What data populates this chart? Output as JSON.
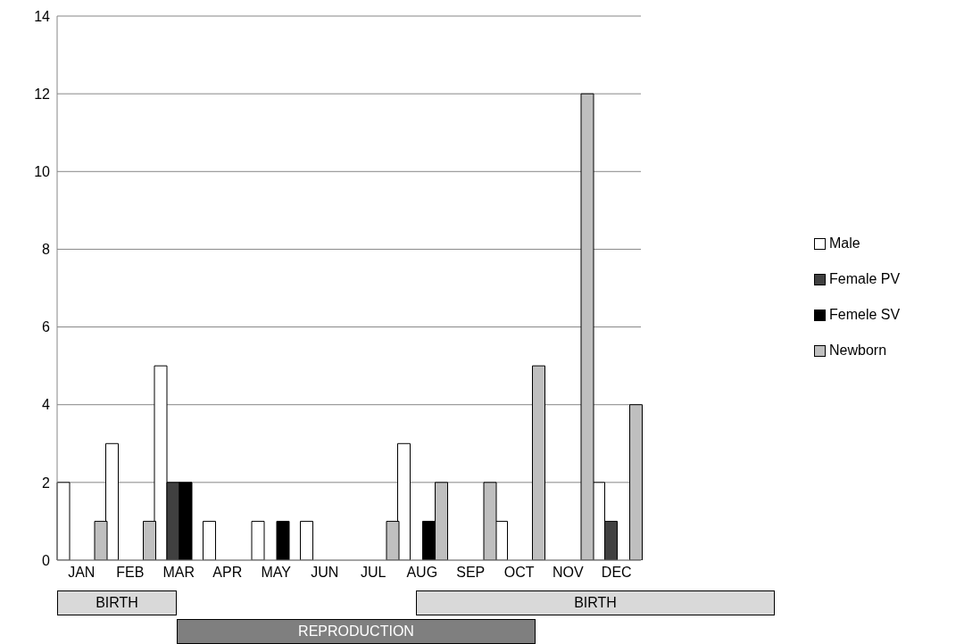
{
  "chart_data": {
    "type": "bar",
    "categories": [
      "JAN",
      "FEB",
      "MAR",
      "APR",
      "MAY",
      "JUN",
      "JUL",
      "AUG",
      "SEP",
      "OCT",
      "NOV",
      "DEC"
    ],
    "series": [
      {
        "name": "Male",
        "color": "#ffffff",
        "values": [
          2,
          3,
          5,
          1,
          1,
          1,
          0,
          3,
          0,
          1,
          0,
          2
        ]
      },
      {
        "name": "Female PV",
        "color": "#404040",
        "values": [
          0,
          0,
          2,
          0,
          0,
          0,
          0,
          0,
          0,
          0,
          0,
          1
        ]
      },
      {
        "name": "Femele SV",
        "color": "#000000",
        "values": [
          0,
          0,
          2,
          0,
          1,
          0,
          0,
          1,
          0,
          0,
          0,
          0
        ]
      },
      {
        "name": "Newborn",
        "color": "#bfbfbf",
        "values": [
          1,
          1,
          0,
          0,
          0,
          0,
          1,
          2,
          2,
          5,
          12,
          4
        ]
      }
    ],
    "ylim": [
      0,
      14
    ],
    "yticks": [
      0,
      2,
      4,
      6,
      8,
      10,
      12,
      14
    ],
    "grid": "y",
    "legend": "right",
    "annotations": [
      "BIRTH",
      "BIRTH",
      "REPRODUCTION"
    ]
  }
}
